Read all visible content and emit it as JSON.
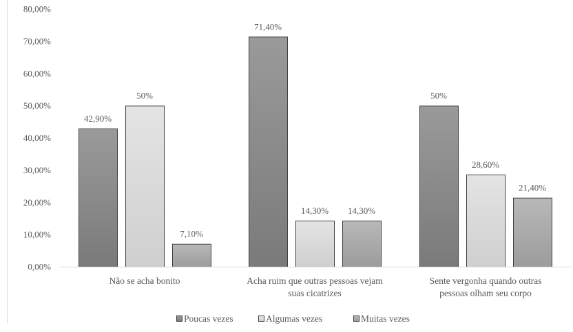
{
  "chart_data": {
    "type": "bar",
    "categories": [
      [
        "Não se acha bonito"
      ],
      [
        "Acha ruim que outras pessoas vejam",
        "suas cicatrizes"
      ],
      [
        "Sente vergonha quando outras",
        "pessoas olham seu corpo"
      ]
    ],
    "series": [
      {
        "name": "Poucas vezes",
        "values": [
          42.9,
          71.4,
          50
        ],
        "labels": [
          "42,90%",
          "71,40%",
          "50%"
        ]
      },
      {
        "name": "Algumas vezes",
        "values": [
          50,
          14.3,
          28.6
        ],
        "labels": [
          "50%",
          "14,30%",
          "28,60%"
        ]
      },
      {
        "name": "Muitas vezes",
        "values": [
          7.1,
          14.3,
          21.4
        ],
        "labels": [
          "7,10%",
          "14,30%",
          "21,40%"
        ]
      }
    ],
    "y_ticks": [
      "0,00%",
      "10,00%",
      "20,00%",
      "30,00%",
      "40,00%",
      "50,00%",
      "60,00%",
      "70,00%",
      "80,00%"
    ],
    "ylim": [
      0,
      80
    ],
    "legend_position": "bottom",
    "grid": false,
    "colors": {
      "Poucas vezes": "#a6a6a6",
      "Algumas vezes": "#d9d9d9",
      "Muitas vezes": "#b0b0b0",
      "outline": "#404040"
    }
  }
}
